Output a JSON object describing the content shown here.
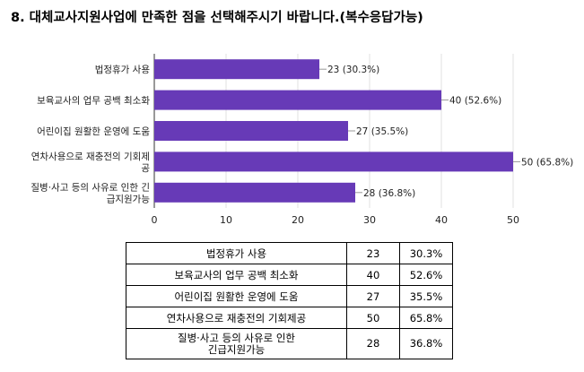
{
  "question": "8. 대체교사지원사업에 만족한 점을 선택해주시기 바랍니다.(복수응답가능)",
  "colors": {
    "bar": "#673ab7",
    "grid": "#e0e0e0",
    "axis": "#333333",
    "text": "#222222"
  },
  "chart_data": {
    "type": "bar",
    "orientation": "horizontal",
    "categories": [
      "법정휴가 사용",
      "보육교사의 업무 공백 최소화",
      "어린이집 원활한 운영에 도움",
      "연차사용으로 재충전의 기회제공",
      "질병·사고 등의 사유로 인한 긴급지원가능"
    ],
    "category_lines": [
      [
        "법정휴가 사용"
      ],
      [
        "보육교사의 업무 공백 최소화"
      ],
      [
        "어린이집 원활한 운영에 도움"
      ],
      [
        "연차사용으로 재충전의 기회제",
        "공"
      ],
      [
        "질병·사고 등의 사유로 인한 긴",
        "급지원가능"
      ]
    ],
    "values": [
      23,
      40,
      27,
      50,
      28
    ],
    "data_labels": [
      "23 (30.3%)",
      "40 (52.6%)",
      "27 (35.5%)",
      "50 (65.8%)",
      "28 (36.8%)"
    ],
    "xlim": [
      0,
      50
    ],
    "xticks": [
      "0",
      "10",
      "20",
      "30",
      "40",
      "50"
    ],
    "grid": true
  },
  "table": {
    "rows": [
      {
        "label": "법정휴가 사용",
        "count": "23",
        "pct": "30.3%"
      },
      {
        "label": "보육교사의 업무 공백 최소화",
        "count": "40",
        "pct": "52.6%"
      },
      {
        "label": "어린이집 원활한 운영에 도움",
        "count": "27",
        "pct": "35.5%"
      },
      {
        "label": "연차사용으로 재충전의 기회제공",
        "count": "50",
        "pct": "65.8%"
      },
      {
        "label_line1": "질병·사고 등의 사유로 인한",
        "label_line2": "긴급지원가능",
        "count": "28",
        "pct": "36.8%"
      }
    ]
  }
}
